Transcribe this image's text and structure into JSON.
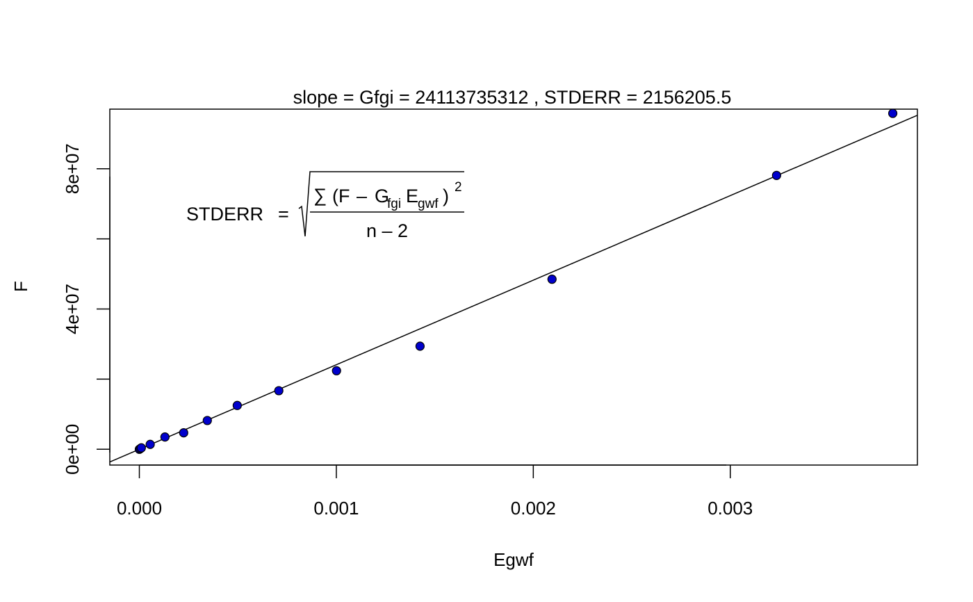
{
  "chart_data": {
    "type": "scatter",
    "title": "slope = Gfgi =  24113735312  , STDERR =  2156205.5",
    "xlabel": "Egwf",
    "ylabel": "F",
    "xlim": [
      -0.00015,
      0.00395
    ],
    "ylim": [
      -4500000,
      97000000
    ],
    "x_ticks": [
      {
        "value": 0.0,
        "label": "0.000"
      },
      {
        "value": 0.001,
        "label": "0.001"
      },
      {
        "value": 0.002,
        "label": "0.002"
      },
      {
        "value": 0.003,
        "label": "0.003"
      }
    ],
    "y_ticks": [
      {
        "value": 0,
        "label": "0e+00"
      },
      {
        "value": 20000000,
        "label": ""
      },
      {
        "value": 40000000,
        "label": "4e+07"
      },
      {
        "value": 60000000,
        "label": ""
      },
      {
        "value": 80000000,
        "label": "8e+07"
      }
    ],
    "grid": false,
    "point_color": "#0000cc",
    "points": [
      {
        "x": 0.0,
        "y": 0
      },
      {
        "x": 5e-06,
        "y": 200000
      },
      {
        "x": 1e-05,
        "y": 400000
      },
      {
        "x": 5.5e-05,
        "y": 1400000
      },
      {
        "x": 0.00013,
        "y": 3500000
      },
      {
        "x": 0.000225,
        "y": 4700000
      },
      {
        "x": 0.000345,
        "y": 8200000
      },
      {
        "x": 0.000497,
        "y": 12500000
      },
      {
        "x": 0.000708,
        "y": 16700000
      },
      {
        "x": 0.001001,
        "y": 22400000
      },
      {
        "x": 0.001425,
        "y": 29400000
      },
      {
        "x": 0.002095,
        "y": 48500000
      },
      {
        "x": 0.003235,
        "y": 78100000
      },
      {
        "x": 0.003825,
        "y": 95800000
      }
    ],
    "fit_line": {
      "slope": 24113735312,
      "intercept": 0,
      "color": "#000000"
    },
    "formula": {
      "lhs": "STDERR",
      "eq": "=",
      "sum": "∑",
      "open": "(F",
      "minus": "–",
      "G": "G",
      "G_sub": "fgi",
      "E": "E",
      "E_sub": "gwf",
      "close": ")",
      "power": "2",
      "denominator": "n – 2"
    }
  }
}
